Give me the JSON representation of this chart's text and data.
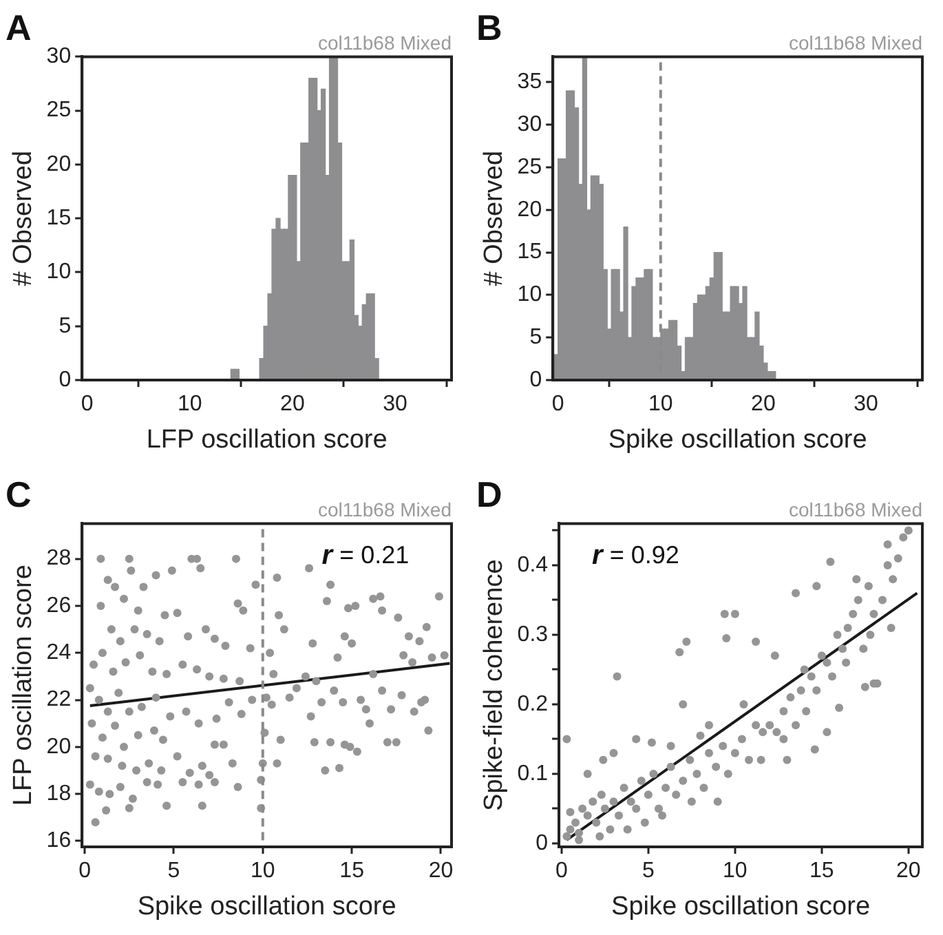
{
  "chart_data": [
    {
      "type": "histogram",
      "title": "A",
      "xlabel": "LFP oscillation score",
      "ylabel": "# Observed",
      "annotations": [
        "col11b68 Mixed"
      ],
      "color": "#8e8e90",
      "bins": [
        14.0,
        14.4,
        14.8,
        15.2,
        15.6,
        16.0,
        16.4,
        16.8,
        17.2,
        17.6,
        18.0,
        18.4,
        18.8,
        19.2,
        19.6,
        20.0,
        20.4,
        20.8,
        21.2,
        21.6,
        22.0,
        22.4,
        22.8,
        23.2,
        23.6,
        24.0,
        24.4,
        24.8,
        25.2,
        25.6,
        26.0,
        26.4,
        26.8,
        27.2,
        27.6,
        28.0,
        28.4
      ],
      "values": [
        1,
        1,
        0,
        0,
        0,
        0,
        0,
        2,
        5,
        8,
        14,
        15,
        14,
        14,
        19,
        19,
        11,
        22,
        22,
        28,
        28,
        25,
        27,
        19,
        30,
        30,
        22,
        11,
        11,
        13,
        6,
        5,
        7,
        8,
        8,
        2
      ],
      "xlim": [
        -0.5,
        35.5
      ],
      "xticks": [
        0,
        10,
        20,
        30
      ],
      "ylim": [
        0,
        30
      ],
      "yticks": [
        0,
        5,
        10,
        15,
        20,
        25,
        30
      ]
    },
    {
      "type": "histogram",
      "title": "B",
      "xlabel": "Spike oscillation score",
      "ylabel": "# Observed",
      "annotations": [
        "col11b68 Mixed"
      ],
      "color": "#8e8e90",
      "bins": [
        -0.4,
        0.0,
        0.4,
        0.8,
        1.2,
        1.6,
        2.0,
        2.4,
        2.8,
        3.2,
        3.6,
        4.0,
        4.4,
        4.8,
        5.2,
        5.6,
        6.0,
        6.4,
        6.8,
        7.2,
        7.6,
        8.0,
        8.4,
        8.8,
        9.2,
        9.6,
        10.0,
        10.4,
        10.8,
        11.2,
        11.6,
        12.0,
        12.4,
        12.8,
        13.2,
        13.6,
        14.0,
        14.4,
        14.8,
        15.2,
        15.6,
        16.0,
        16.4,
        16.8,
        17.2,
        17.6,
        18.0,
        18.4,
        18.8,
        19.2,
        19.6,
        20.0,
        20.4,
        20.8,
        21.2
      ],
      "values": [
        3,
        26,
        26,
        34,
        34,
        32,
        23,
        38,
        20,
        24,
        24,
        23,
        13,
        6,
        13,
        13,
        8,
        18,
        5,
        11,
        12,
        12,
        13,
        13,
        5,
        5,
        6,
        6,
        7,
        7,
        4,
        1,
        5,
        5,
        9,
        10,
        10,
        11,
        12,
        15,
        15,
        8,
        8,
        11,
        11,
        9,
        11,
        5,
        5,
        8,
        4,
        2,
        1,
        1
      ],
      "xlim": [
        -0.5,
        35.5
      ],
      "xticks": [
        0,
        10,
        20,
        30
      ],
      "ylim": [
        0,
        38
      ],
      "yticks": [
        0,
        5,
        10,
        15,
        20,
        25,
        30,
        35
      ],
      "ref_lines": [
        {
          "axis": "x",
          "value": 10,
          "color": "#8a8a8a",
          "line_style": "dashed"
        }
      ]
    },
    {
      "type": "scatter",
      "title": "C",
      "xlabel": "Spike oscillation score",
      "ylabel": "LFP oscillation score",
      "annotations": [
        "col11b68 Mixed",
        "r = 0.21"
      ],
      "series": [
        {
          "type": "scatter",
          "marker": "circle",
          "color": "#959595",
          "x": [
            0.9,
            2.5,
            2.6,
            4.9,
            6.0,
            6.3,
            6.5,
            8.5,
            9.6,
            10.8,
            12.6,
            13.8,
            1.3,
            3.3,
            4.0,
            1.7,
            2.2,
            3.0,
            0.9,
            1.5,
            2.0,
            2.8,
            3.5,
            4.2,
            4.5,
            5.2,
            5.8,
            6.8,
            7.3,
            7.9,
            8.6,
            8.9,
            9.3,
            0.5,
            1.0,
            1.6,
            2.3,
            3.1,
            3.8,
            4.6,
            5.5,
            6.3,
            7.0,
            7.8,
            8.7,
            9.4,
            0.3,
            0.8,
            1.3,
            1.9,
            2.5,
            3.2,
            4.0,
            4.8,
            5.7,
            6.4,
            7.4,
            8.1,
            8.8,
            0.4,
            1.0,
            1.7,
            2.2,
            3.0,
            3.9,
            4.4,
            7.3,
            7.8,
            0.6,
            1.3,
            2.1,
            2.9,
            3.6,
            4.3,
            5.2,
            5.9,
            6.6,
            7.0,
            8.3,
            0.3,
            0.8,
            1.4,
            2.0,
            2.7,
            3.5,
            4.1,
            4.6,
            5.5,
            6.4,
            6.6,
            7.3,
            8.6,
            0.6,
            1.2,
            2.5,
            9.9,
            9.9,
            10.0,
            10.1,
            10.8,
            11.0,
            10.2,
            10.5,
            10.6,
            10.4,
            10.9,
            11.2,
            11.5,
            11.9,
            12.4,
            12.8,
            12.7,
            12.9,
            13.3,
            13.5,
            13.8,
            14.3,
            14.6,
            14.9,
            15.3,
            14.0,
            14.5,
            14.2,
            14.6,
            13.6,
            14.8,
            15.0,
            15.2,
            15.5,
            15.8,
            16.2,
            16.6,
            16.7,
            16.2,
            16.7,
            17.2,
            17.0,
            17.5,
            17.8,
            17.9,
            17.6,
            18.2,
            18.4,
            18.8,
            18.5,
            18.9,
            19.3,
            19.2,
            19.5,
            19.9,
            20.2,
            19.1,
            16.0,
            13.0
          ],
          "values": [
            28.0,
            28.0,
            27.5,
            27.5,
            28.0,
            28.0,
            27.6,
            28.0,
            26.9,
            27.2,
            27.6,
            26.9,
            27.1,
            26.8,
            27.3,
            26.8,
            26.3,
            25.8,
            26.0,
            25.0,
            24.5,
            25.0,
            24.8,
            24.5,
            25.6,
            25.7,
            24.7,
            25.0,
            24.6,
            24.3,
            26.1,
            25.8,
            24.2,
            23.5,
            24.0,
            23.2,
            23.6,
            23.9,
            23.2,
            23.1,
            23.5,
            23.3,
            23.0,
            22.9,
            22.8,
            22.0,
            22.5,
            22.0,
            21.5,
            22.3,
            21.5,
            21.7,
            22.1,
            21.3,
            21.5,
            21.0,
            21.2,
            21.9,
            21.4,
            21.0,
            20.4,
            20.9,
            20.0,
            20.5,
            20.7,
            20.3,
            20.1,
            20.1,
            19.6,
            19.5,
            19.2,
            19.0,
            19.3,
            19.0,
            19.6,
            18.9,
            19.2,
            18.8,
            19.3,
            18.4,
            18.1,
            18.0,
            18.3,
            17.8,
            18.5,
            18.4,
            17.5,
            18.5,
            18.4,
            17.5,
            18.5,
            18.3,
            16.8,
            17.3,
            17.4,
            17.4,
            18.6,
            19.3,
            20.6,
            19.3,
            20.3,
            22.1,
            21.8,
            23.1,
            24.0,
            25.6,
            25.0,
            22.1,
            22.5,
            23.0,
            24.4,
            21.3,
            20.2,
            21.9,
            19.0,
            20.2,
            19.1,
            20.1,
            20.0,
            19.8,
            22.4,
            21.9,
            23.8,
            24.7,
            26.2,
            25.9,
            24.4,
            26.0,
            22.0,
            21.6,
            26.3,
            26.4,
            25.8,
            23.1,
            22.4,
            21.6,
            20.2,
            20.2,
            22.2,
            23.9,
            25.5,
            24.7,
            23.6,
            24.5,
            21.5,
            21.9,
            20.7,
            25.1,
            23.8,
            26.4,
            23.9,
            22.0,
            21.0,
            22.8
          ]
        },
        {
          "type": "line",
          "marker": "none",
          "color": "#1a1a1a",
          "x": [
            0.3,
            20.5
          ],
          "values": [
            21.75,
            23.55
          ]
        }
      ],
      "xlim": [
        -0.15,
        20.6
      ],
      "xticks": [
        0,
        5,
        10,
        15,
        20
      ],
      "ylim": [
        15.75,
        29.5
      ],
      "yticks": [
        16,
        18,
        20,
        22,
        24,
        26,
        28
      ],
      "ref_lines": [
        {
          "axis": "x",
          "value": 10,
          "color": "#8a8a8a",
          "line_style": "dashed"
        }
      ]
    },
    {
      "type": "scatter",
      "title": "D",
      "xlabel": "Spike oscillation score",
      "ylabel": "Spike-field coherence",
      "annotations": [
        "col11b68 Mixed",
        "r = 0.92"
      ],
      "series": [
        {
          "type": "scatter",
          "marker": "circle",
          "color": "#959595",
          "x": [
            0.3,
            0.5,
            0.8,
            1.0,
            1.2,
            1.5,
            1.8,
            2.0,
            2.3,
            2.5,
            2.8,
            3.0,
            3.3,
            3.6,
            4.0,
            4.3,
            4.6,
            5.0,
            5.3,
            5.6,
            6.0,
            6.3,
            6.6,
            7.0,
            7.4,
            7.8,
            8.2,
            8.5,
            8.9,
            9.3,
            9.6,
            10.0,
            10.4,
            10.8,
            11.2,
            11.6,
            12.0,
            12.4,
            12.8,
            13.2,
            13.5,
            13.8,
            14.1,
            14.4,
            14.7,
            15.0,
            15.3,
            15.6,
            15.9,
            16.2,
            16.5,
            16.8,
            17.1,
            17.4,
            17.7,
            18.0,
            18.2,
            18.5,
            18.8,
            19.1,
            19.4,
            19.7,
            20.0,
            0.3,
            3.2,
            5.2,
            6.8,
            7.2,
            7.0,
            9.4,
            9.5,
            10.0,
            11.2,
            12.3,
            13.5,
            14.7,
            15.5,
            14.6,
            15.3,
            16.0,
            17.5,
            18.0,
            17.0,
            18.8,
            2.4,
            1.5,
            4.3,
            3.0,
            6.3,
            8.0,
            9.0,
            7.5,
            4.8,
            1.0,
            2.2,
            0.5,
            3.8,
            5.8,
            11.5,
            12.8,
            13.0,
            14.0,
            16.4,
            19.0,
            17.8,
            10.5,
            8.5
          ],
          "values": [
            0.01,
            0.02,
            0.03,
            0.015,
            0.05,
            0.04,
            0.06,
            0.03,
            0.07,
            0.05,
            0.02,
            0.06,
            0.04,
            0.08,
            0.06,
            0.05,
            0.09,
            0.07,
            0.1,
            0.05,
            0.08,
            0.11,
            0.07,
            0.09,
            0.12,
            0.1,
            0.08,
            0.13,
            0.11,
            0.14,
            0.1,
            0.13,
            0.15,
            0.12,
            0.17,
            0.16,
            0.17,
            0.16,
            0.19,
            0.21,
            0.17,
            0.22,
            0.19,
            0.24,
            0.22,
            0.27,
            0.26,
            0.24,
            0.3,
            0.28,
            0.31,
            0.33,
            0.35,
            0.28,
            0.37,
            0.33,
            0.23,
            0.35,
            0.4,
            0.38,
            0.41,
            0.44,
            0.45,
            0.15,
            0.24,
            0.145,
            0.275,
            0.29,
            0.2,
            0.33,
            0.295,
            0.33,
            0.29,
            0.27,
            0.36,
            0.37,
            0.405,
            0.135,
            0.16,
            0.195,
            0.225,
            0.23,
            0.38,
            0.43,
            0.12,
            0.1,
            0.15,
            0.13,
            0.14,
            0.155,
            0.06,
            0.06,
            0.03,
            0.005,
            0.01,
            0.045,
            0.02,
            0.04,
            0.12,
            0.15,
            0.12,
            0.25,
            0.26,
            0.31,
            0.3,
            0.2,
            0.17
          ]
        },
        {
          "type": "line",
          "marker": "none",
          "color": "#1a1a1a",
          "x": [
            0.3,
            20.5
          ],
          "values": [
            0.005,
            0.36
          ]
        }
      ],
      "xlim": [
        -0.15,
        20.8
      ],
      "xticks": [
        0,
        5,
        10,
        15,
        20
      ],
      "ylim": [
        -0.005,
        0.46
      ],
      "yticks": [
        0,
        {
          "value": 0.05,
          "label": null
        },
        0.1,
        {
          "value": 0.15,
          "label": null
        },
        0.2,
        {
          "value": 0.25,
          "label": null
        },
        0.3,
        {
          "value": 0.35,
          "label": null
        },
        0.4,
        {
          "value": 0.45,
          "label": null
        }
      ]
    }
  ]
}
